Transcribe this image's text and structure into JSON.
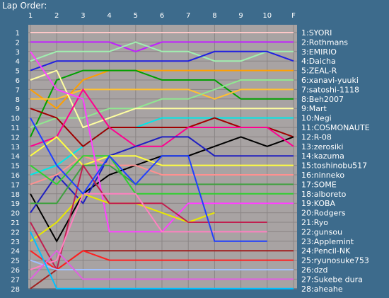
{
  "title": "Lap Order:",
  "chart_data": {
    "type": "line",
    "title": "Lap Order:",
    "x": [
      "1",
      "2",
      "3",
      "4",
      "5",
      "6",
      "7",
      "8",
      "9",
      "10",
      "F"
    ],
    "y_ticks": [
      1,
      2,
      3,
      4,
      5,
      6,
      7,
      8,
      9,
      10,
      11,
      12,
      13,
      14,
      15,
      16,
      17,
      18,
      19,
      20,
      21,
      22,
      23,
      24,
      25,
      26,
      27,
      28
    ],
    "ylim": [
      1,
      28
    ],
    "y_reversed": true,
    "grid": true,
    "series": [
      {
        "name": "1:SYORI",
        "color": "#ffc8c8",
        "values": [
          1,
          1,
          1,
          1,
          1,
          1,
          1,
          1,
          1,
          1,
          1
        ]
      },
      {
        "name": "2:Rothmans",
        "color": "#c020ff",
        "values": [
          2,
          2,
          2,
          2,
          3,
          2,
          2,
          2,
          2,
          2,
          2
        ]
      },
      {
        "name": "3:EMIRIO",
        "color": "#a0f0b0",
        "values": [
          4,
          3,
          3,
          3,
          2,
          3,
          3,
          4,
          4,
          3,
          3
        ]
      },
      {
        "name": "4:Daicha",
        "color": "#2020e0",
        "values": [
          5,
          4,
          4,
          4,
          4,
          4,
          4,
          3,
          3,
          3,
          4
        ]
      },
      {
        "name": "5:ZEAL-R",
        "color": "#ffa000",
        "values": [
          7,
          9,
          6,
          5,
          5,
          5,
          5,
          5,
          5,
          5,
          5
        ]
      },
      {
        "name": "6:xanavi-yuuki",
        "color": "#00a000",
        "values": [
          12,
          6,
          5,
          5,
          5,
          6,
          6,
          6,
          8,
          8,
          8
        ]
      },
      {
        "name": "7:satoshi-1118",
        "color": "#ffc030",
        "values": [
          8,
          8,
          7,
          7,
          7,
          7,
          7,
          8,
          7,
          7,
          7
        ]
      },
      {
        "name": "8:Beh2007",
        "color": "#90e890",
        "values": [
          11,
          10,
          10,
          9,
          9,
          8,
          8,
          7,
          6,
          6,
          6
        ]
      },
      {
        "name": "9:Mart",
        "color": "#ffffa0",
        "values": [
          6,
          5,
          11,
          10,
          9,
          9,
          9,
          9,
          9,
          9,
          9
        ]
      },
      {
        "name": "10:Negi",
        "color": "#00e8e8",
        "values": [
          16,
          15,
          13,
          11,
          11,
          10,
          10,
          10,
          10,
          10,
          10
        ]
      },
      {
        "name": "11:COSMONAUTE",
        "color": "#a00000",
        "values": [
          9,
          10,
          13,
          11,
          11,
          11,
          11,
          10,
          11,
          11,
          12
        ]
      },
      {
        "name": "12:R-08",
        "color": "#000000",
        "values": [
          18,
          23,
          18,
          16,
          15,
          14,
          14,
          13,
          12,
          13,
          12
        ]
      },
      {
        "name": "13:zerosiki",
        "color": "#ff0090",
        "values": [
          13,
          12,
          7,
          11,
          13,
          13,
          11,
          11,
          11,
          11,
          13
        ]
      },
      {
        "name": "14:kazuma",
        "color": "#2020c0",
        "values": [
          20,
          16,
          19,
          14,
          13,
          12,
          12,
          14,
          14,
          14,
          14
        ]
      },
      {
        "name": "15:toshinobu517",
        "color": "#ffff40",
        "values": [
          14,
          12,
          15,
          14,
          14,
          15,
          15,
          15,
          15,
          15,
          15
        ]
      },
      {
        "name": "16:ninneko",
        "color": "#ff9090",
        "values": [
          17,
          16,
          14,
          15,
          15,
          16,
          16,
          16,
          16,
          16,
          16
        ]
      },
      {
        "name": "17:SOME",
        "color": "#40a040",
        "values": [
          19,
          19,
          15,
          15,
          17,
          17,
          17,
          17,
          17,
          17,
          17
        ]
      },
      {
        "name": "18:alboreto",
        "color": "#30d030",
        "values": [
          15,
          17,
          14,
          14,
          18,
          18,
          18,
          18,
          18,
          18,
          18
        ]
      },
      {
        "name": "19:KOBA",
        "color": "#ff40ff",
        "values": [
          3,
          7,
          8,
          22,
          22,
          22,
          19,
          19,
          19,
          19,
          19
        ]
      },
      {
        "name": "20:Rodgers",
        "color": "#e8e800",
        "values": [
          23,
          21,
          18,
          19,
          19,
          20,
          21,
          20,
          null,
          null,
          null
        ]
      },
      {
        "name": "21:Ryo",
        "color": "#c02050",
        "values": [
          21,
          26,
          15,
          19,
          19,
          19,
          21,
          21,
          21,
          21,
          null
        ]
      },
      {
        "name": "22:gunsou",
        "color": "#ff80c0",
        "values": [
          26,
          25,
          18,
          18,
          18,
          22,
          22,
          22,
          22,
          22,
          null
        ]
      },
      {
        "name": "23:Applemint",
        "color": "#2040ff",
        "values": [
          10,
          15,
          18,
          14,
          17,
          14,
          14,
          23,
          23,
          23,
          null
        ]
      },
      {
        "name": "24:Pencil-NK",
        "color": "#a02020",
        "values": [
          28,
          26,
          24,
          24,
          24,
          24,
          24,
          24,
          24,
          24,
          24
        ]
      },
      {
        "name": "25:ryunosuke753",
        "color": "#ff2020",
        "values": [
          24,
          26,
          24,
          25,
          25,
          25,
          25,
          25,
          25,
          25,
          25
        ]
      },
      {
        "name": "26:dzd",
        "color": "#a0c0ff",
        "values": [
          25,
          26,
          26,
          26,
          26,
          26,
          26,
          26,
          26,
          26,
          26
        ]
      },
      {
        "name": "27:Sukebe dura",
        "color": "#e060e0",
        "values": [
          27,
          24,
          27,
          27,
          27,
          27,
          27,
          27,
          27,
          27,
          27
        ]
      },
      {
        "name": "28:aheahe",
        "color": "#00c0ff",
        "values": [
          22,
          28,
          28,
          28,
          28,
          28,
          28,
          28,
          28,
          28,
          28
        ]
      }
    ]
  }
}
